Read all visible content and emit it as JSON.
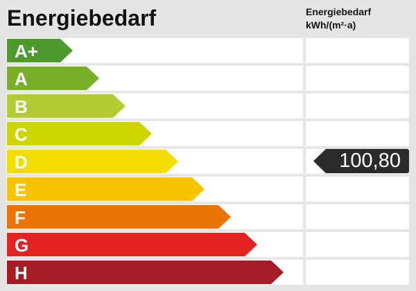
{
  "title": "Energiebedarf",
  "column_header": {
    "line1": "Energiebedarf",
    "line2": "kWh/(m²·a)"
  },
  "classes": [
    {
      "label": "A+",
      "color": "#4e9a2f"
    },
    {
      "label": "A",
      "color": "#7aaf2a"
    },
    {
      "label": "B",
      "color": "#b5cb33"
    },
    {
      "label": "C",
      "color": "#cdd400"
    },
    {
      "label": "D",
      "color": "#f1de00"
    },
    {
      "label": "E",
      "color": "#f8c300"
    },
    {
      "label": "F",
      "color": "#eb7405"
    },
    {
      "label": "G",
      "color": "#e32422"
    },
    {
      "label": "H",
      "color": "#a51c24"
    }
  ],
  "value": {
    "text": "100,80",
    "class": "D",
    "color": "#2b2b2b"
  }
}
